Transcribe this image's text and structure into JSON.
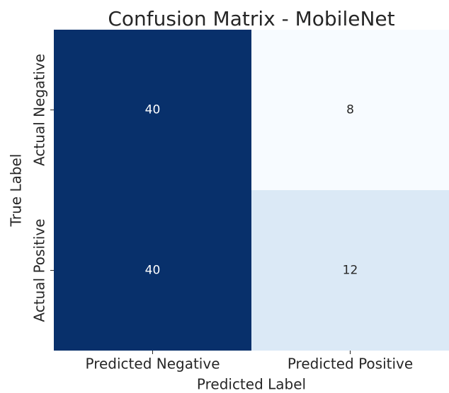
{
  "chart_data": {
    "type": "heatmap",
    "title": "Confusion Matrix - MobileNet",
    "x_label": "Predicted Label",
    "y_label": "True Label",
    "x_categories": [
      "Predicted Negative",
      "Predicted Positive"
    ],
    "y_categories": [
      "Actual Negative",
      "Actual Positive"
    ],
    "values": [
      [
        40,
        8
      ],
      [
        40,
        12
      ]
    ],
    "colors": [
      [
        "#08306b",
        "#f7fbff"
      ],
      [
        "#08306b",
        "#dbe9f6"
      ]
    ]
  }
}
